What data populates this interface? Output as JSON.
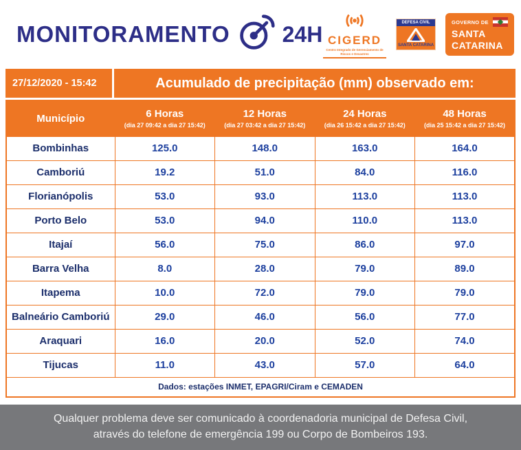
{
  "header": {
    "title": "MONITORAMENTO",
    "hours_label": "24H",
    "logos": {
      "cigerd": {
        "name": "CIGERD",
        "subtitle": "Centro Integrado de Gerenciamento de Riscos e Desastres"
      },
      "defesa_civil": {
        "line1": "DEFESA CIVIL",
        "line2": "SANTA CATARINA"
      },
      "governo": {
        "line1": "GOVERNO DE",
        "line2": "SANTA",
        "line3": "CATARINA"
      }
    }
  },
  "banner": {
    "datetime": "27/12/2020 - 15:42",
    "title": "Acumulado de precipitação (mm) observado em:"
  },
  "chart_data": {
    "type": "table",
    "title": "Acumulado de precipitação (mm) observado em:",
    "datetime": "27/12/2020 - 15:42",
    "columns": [
      "Município",
      "6 Horas",
      "12 Horas",
      "24 Horas",
      "48 Horas"
    ],
    "column_subtitles": [
      "",
      "(dia 27 09:42 a dia 27 15:42)",
      "(dia 27 03:42 a dia 27 15:42)",
      "(dia 26 15:42 a dia 27 15:42)",
      "(dia 25 15:42 a dia 27 15:42)"
    ],
    "rows": [
      [
        "Bombinhas",
        125.0,
        148.0,
        163.0,
        164.0
      ],
      [
        "Camboriú",
        19.2,
        51.0,
        84.0,
        116.0
      ],
      [
        "Florianópolis",
        53.0,
        93.0,
        113.0,
        113.0
      ],
      [
        "Porto Belo",
        53.0,
        94.0,
        110.0,
        113.0
      ],
      [
        "Itajaí",
        56.0,
        75.0,
        86.0,
        97.0
      ],
      [
        "Barra Velha",
        8.0,
        28.0,
        79.0,
        89.0
      ],
      [
        "Itapema",
        10.0,
        72.0,
        79.0,
        79.0
      ],
      [
        "Balneário Camboriú",
        29.0,
        46.0,
        56.0,
        77.0
      ],
      [
        "Araquari",
        16.0,
        20.0,
        52.0,
        74.0
      ],
      [
        "Tijucas",
        11.0,
        43.0,
        57.0,
        64.0
      ]
    ],
    "source_note": "Dados: estações INMET, EPAGRI/Ciram e CEMADEN"
  },
  "footer": {
    "line1": "Qualquer problema deve ser comunicado à coordenadoria municipal de Defesa Civil,",
    "line2": "através do telefone de emergência 199 ou Corpo de Bombeiros 193."
  },
  "colors": {
    "orange": "#EE7623",
    "navy": "#2D2E87",
    "value_blue": "#1C3F9E",
    "municipality_blue": "#1B2E6B",
    "footer_gray": "#77787B"
  }
}
